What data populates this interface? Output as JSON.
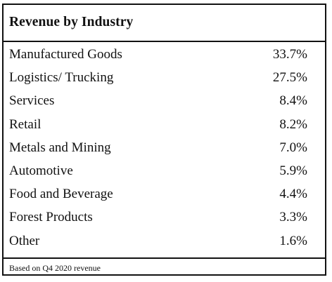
{
  "table": {
    "title": "Revenue by Industry",
    "rows": [
      {
        "label": "Manufactured Goods",
        "value": "33.7%"
      },
      {
        "label": "Logistics/ Trucking",
        "value": "27.5%"
      },
      {
        "label": "Services",
        "value": "8.4%"
      },
      {
        "label": "Retail",
        "value": "8.2%"
      },
      {
        "label": "Metals and Mining",
        "value": "7.0%"
      },
      {
        "label": "Automotive",
        "value": "5.9%"
      },
      {
        "label": "Food and Beverage",
        "value": "4.4%"
      },
      {
        "label": "Forest Products",
        "value": "3.3%"
      },
      {
        "label": "Other",
        "value": "1.6%"
      }
    ],
    "footnote": "Based on Q4 2020 revenue"
  }
}
